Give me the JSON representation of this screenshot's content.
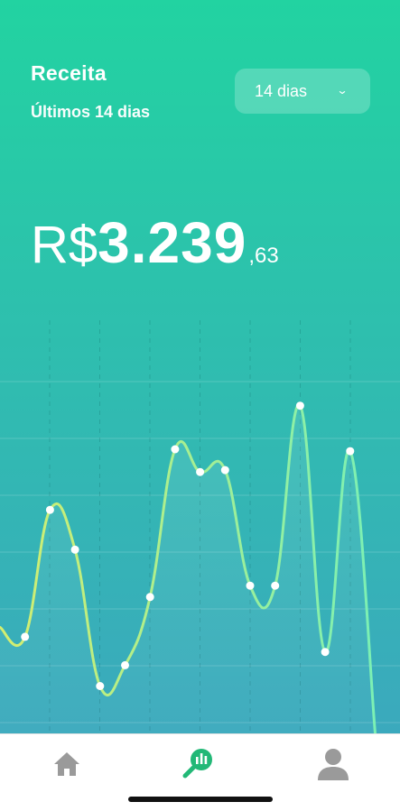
{
  "header": {
    "title": "Receita",
    "subtitle": "Últimos 14 dias",
    "range_select": {
      "value": "14 dias",
      "icon": "chevron-down-icon"
    }
  },
  "balance": {
    "currency": "R$",
    "integer": "3.239",
    "decimal": ",63"
  },
  "colors": {
    "gradient_top": "#22d3a1",
    "gradient_bottom": "#3ba9bd",
    "line_start": "#d4ee6f",
    "line_end": "#7bf0b4",
    "tab_active": "#22b877",
    "tab_inactive": "#9a9a9a"
  },
  "chart_data": {
    "type": "line",
    "smooth": true,
    "x": [
      1,
      2,
      3,
      4,
      5,
      6,
      7,
      8,
      9,
      10,
      11,
      12,
      13,
      14,
      15,
      16
    ],
    "values": [
      2.8,
      2.55,
      5.9,
      4.85,
      1.25,
      1.8,
      3.6,
      7.5,
      6.9,
      6.95,
      3.9,
      3.9,
      8.65,
      2.15,
      7.45,
      0
    ],
    "ylim": [
      0,
      10
    ],
    "grid": true,
    "points_shown": [
      1,
      2,
      3,
      4,
      5,
      6,
      7,
      8,
      9,
      10,
      11,
      12,
      13,
      14
    ],
    "title": "",
    "xlabel": "",
    "ylabel": ""
  },
  "tabbar": {
    "items": [
      {
        "id": "home",
        "icon": "home-icon",
        "active": false
      },
      {
        "id": "stats",
        "icon": "revenue-chart-icon",
        "active": true
      },
      {
        "id": "profile",
        "icon": "profile-icon",
        "active": false
      }
    ]
  }
}
